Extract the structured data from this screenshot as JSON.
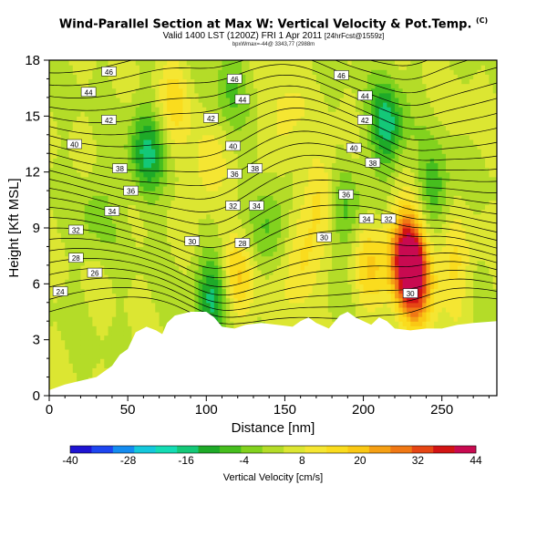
{
  "header": {
    "title": "Wind-Parallel Section at Max W: Vertical Velocity & Pot.Temp.",
    "copyright": "(C)",
    "subtitle": "Valid 1400 LST (1200Z) FRI 1 Apr 2011",
    "subtitle_suffix": "[24hrFcst@1559z]",
    "footnote": "bpxWmax=-44@ 3343,77 (2988m"
  },
  "chart_data": {
    "type": "heatmap",
    "title": "Wind-Parallel Section at Max W: Vertical Velocity & Pot.Temp.",
    "xlabel": "Distance [nm]",
    "ylabel": "Height [Kft MSL]",
    "xlim": [
      0,
      285
    ],
    "ylim": [
      0,
      18
    ],
    "xticks": [
      0,
      50,
      100,
      150,
      200,
      250
    ],
    "yticks": [
      0,
      3,
      6,
      9,
      12,
      15,
      18
    ],
    "colorbar": {
      "label": "Vertical Velocity [cm/s]",
      "tick_labels": [
        -40,
        -28,
        -16,
        -4,
        8,
        20,
        32,
        44
      ],
      "colors": [
        "#1e14d2",
        "#1e46f0",
        "#148cf0",
        "#14c8dc",
        "#14dcb4",
        "#14c878",
        "#1eaa28",
        "#46be1e",
        "#82d21e",
        "#b4dc28",
        "#dce632",
        "#f5e632",
        "#fadc1e",
        "#fac814",
        "#f5a014",
        "#f07814",
        "#e64614",
        "#d21414",
        "#c80a50"
      ],
      "vmin": -40,
      "vmax": 44
    },
    "vertical_velocity_field": {
      "background_cm_s": 4,
      "features": [
        {
          "x": 228,
          "y": 7.6,
          "w_cm_s": 42
        },
        {
          "x": 234,
          "y": 6.0,
          "w_cm_s": 28
        },
        {
          "x": 205,
          "y": 7.0,
          "w_cm_s": 16
        },
        {
          "x": 175,
          "y": 11.0,
          "w_cm_s": 14
        },
        {
          "x": 160,
          "y": 7.0,
          "w_cm_s": 16
        },
        {
          "x": 150,
          "y": 14.5,
          "w_cm_s": 12
        },
        {
          "x": 120,
          "y": 6.5,
          "w_cm_s": 18
        },
        {
          "x": 100,
          "y": 12.0,
          "w_cm_s": 12
        },
        {
          "x": 80,
          "y": 16.0,
          "w_cm_s": 14
        },
        {
          "x": 258,
          "y": 7.0,
          "w_cm_s": 14
        },
        {
          "x": 265,
          "y": 15.0,
          "w_cm_s": 6
        },
        {
          "x": 105,
          "y": 5.5,
          "w_cm_s": -14
        },
        {
          "x": 62,
          "y": 13.0,
          "w_cm_s": -14
        },
        {
          "x": 215,
          "y": 14.5,
          "w_cm_s": -16
        },
        {
          "x": 188,
          "y": 10.0,
          "w_cm_s": -6
        },
        {
          "x": 140,
          "y": 9.5,
          "w_cm_s": -6
        },
        {
          "x": 30,
          "y": 10.0,
          "w_cm_s": -2
        },
        {
          "x": 245,
          "y": 11.0,
          "w_cm_s": -8
        },
        {
          "x": 115,
          "y": 16.5,
          "w_cm_s": -4
        }
      ]
    },
    "terrain_top_kft": [
      [
        0,
        0.3
      ],
      [
        10,
        0.6
      ],
      [
        20,
        0.8
      ],
      [
        30,
        1.0
      ],
      [
        40,
        1.6
      ],
      [
        45,
        2.2
      ],
      [
        50,
        2.5
      ],
      [
        55,
        3.4
      ],
      [
        62,
        3.7
      ],
      [
        68,
        3.5
      ],
      [
        72,
        3.3
      ],
      [
        75,
        3.9
      ],
      [
        80,
        4.3
      ],
      [
        90,
        4.5
      ],
      [
        100,
        4.5
      ],
      [
        105,
        4.2
      ],
      [
        110,
        3.7
      ],
      [
        118,
        3.6
      ],
      [
        125,
        3.8
      ],
      [
        135,
        3.9
      ],
      [
        145,
        3.8
      ],
      [
        155,
        3.7
      ],
      [
        160,
        4.0
      ],
      [
        165,
        4.2
      ],
      [
        170,
        3.9
      ],
      [
        178,
        3.6
      ],
      [
        185,
        4.3
      ],
      [
        190,
        4.5
      ],
      [
        195,
        4.2
      ],
      [
        200,
        4.0
      ],
      [
        205,
        3.8
      ],
      [
        210,
        4.2
      ],
      [
        215,
        4.0
      ],
      [
        220,
        3.6
      ],
      [
        230,
        3.5
      ],
      [
        240,
        3.6
      ],
      [
        250,
        3.6
      ],
      [
        260,
        3.8
      ],
      [
        270,
        3.9
      ],
      [
        285,
        4.0
      ]
    ],
    "potential_temperature_labels": [
      {
        "label": "46",
        "x": 38,
        "y": 17.4
      },
      {
        "label": "44",
        "x": 25,
        "y": 16.3
      },
      {
        "label": "42",
        "x": 38,
        "y": 14.8
      },
      {
        "label": "40",
        "x": 16,
        "y": 13.5
      },
      {
        "label": "38",
        "x": 45,
        "y": 12.2
      },
      {
        "label": "36",
        "x": 52,
        "y": 11.0
      },
      {
        "label": "34",
        "x": 40,
        "y": 9.9
      },
      {
        "label": "32",
        "x": 17,
        "y": 8.9
      },
      {
        "label": "28",
        "x": 17,
        "y": 7.4
      },
      {
        "label": "26",
        "x": 29,
        "y": 6.6
      },
      {
        "label": "24",
        "x": 7,
        "y": 5.6
      },
      {
        "label": "46",
        "x": 118,
        "y": 17.0
      },
      {
        "label": "44",
        "x": 123,
        "y": 15.9
      },
      {
        "label": "42",
        "x": 103,
        "y": 14.9
      },
      {
        "label": "40",
        "x": 117,
        "y": 13.4
      },
      {
        "label": "38",
        "x": 131,
        "y": 12.2
      },
      {
        "label": "36",
        "x": 118,
        "y": 11.9
      },
      {
        "label": "34",
        "x": 132,
        "y": 10.2
      },
      {
        "label": "32",
        "x": 117,
        "y": 10.2
      },
      {
        "label": "30",
        "x": 91,
        "y": 8.3
      },
      {
        "label": "28",
        "x": 123,
        "y": 8.2
      },
      {
        "label": "46",
        "x": 186,
        "y": 17.2
      },
      {
        "label": "44",
        "x": 201,
        "y": 16.1
      },
      {
        "label": "42",
        "x": 201,
        "y": 14.8
      },
      {
        "label": "40",
        "x": 194,
        "y": 13.3
      },
      {
        "label": "38",
        "x": 206,
        "y": 12.5
      },
      {
        "label": "36",
        "x": 189,
        "y": 10.8
      },
      {
        "label": "34",
        "x": 202,
        "y": 9.5
      },
      {
        "label": "32",
        "x": 216,
        "y": 9.5
      },
      {
        "label": "30",
        "x": 175,
        "y": 8.5
      },
      {
        "label": "30",
        "x": 230,
        "y": 5.5
      }
    ]
  }
}
